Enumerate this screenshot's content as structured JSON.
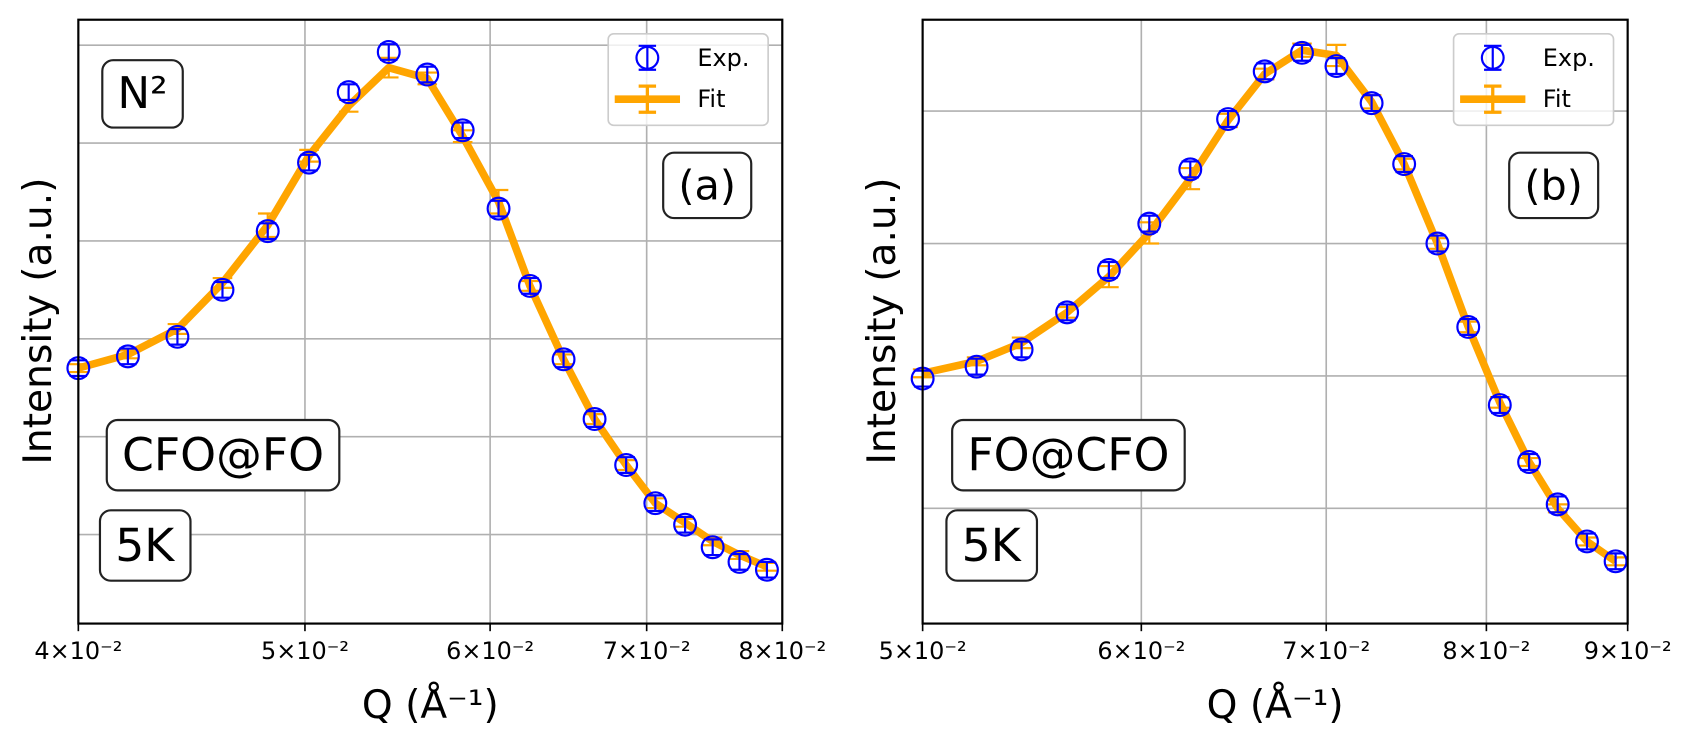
{
  "chart_data": [
    {
      "type": "errorbar",
      "xlabel": "Q (Å⁻¹)",
      "ylabel": "Intensity (a.u.)",
      "xscale": "log",
      "grid": true,
      "legend": "upper right",
      "xlim": [
        0.04,
        0.08
      ],
      "xticks": [
        {
          "value": 0.04,
          "label": "4×10⁻²"
        },
        {
          "value": 0.05,
          "label": "5×10⁻²"
        },
        {
          "value": 0.06,
          "label": "6×10⁻²"
        },
        {
          "value": 0.07,
          "label": "7×10⁻²"
        },
        {
          "value": 0.08,
          "label": "8×10⁻²"
        }
      ],
      "ylim": [
        0.09,
        6.26
      ],
      "yticks": [
        1,
        2,
        3,
        4,
        5,
        6
      ],
      "annotations": [
        "N²",
        "(a)",
        "CFO@FO",
        "5K"
      ],
      "x": [
        0.04,
        0.042,
        0.0441,
        0.0461,
        0.0482,
        0.0502,
        0.0522,
        0.0543,
        0.0564,
        0.0584,
        0.0605,
        0.0624,
        0.0645,
        0.0665,
        0.0686,
        0.0706,
        0.0727,
        0.0747,
        0.0767,
        0.0788
      ],
      "series": [
        {
          "name": "Exp.",
          "color": "#0000ff",
          "values": [
            2.7,
            2.82,
            3.02,
            3.5,
            4.1,
            4.8,
            5.52,
            5.93,
            5.7,
            5.13,
            4.33,
            3.54,
            2.79,
            2.18,
            1.71,
            1.32,
            1.1,
            0.87,
            0.72,
            0.64
          ],
          "errors": [
            0.08,
            0.08,
            0.08,
            0.08,
            0.08,
            0.08,
            0.08,
            0.08,
            0.08,
            0.08,
            0.08,
            0.08,
            0.08,
            0.08,
            0.08,
            0.08,
            0.08,
            0.08,
            0.08,
            0.08
          ]
        },
        {
          "name": "Fit",
          "color": "#ffa500",
          "values": [
            2.7,
            2.84,
            3.1,
            3.57,
            4.16,
            4.87,
            5.38,
            5.77,
            5.66,
            5.07,
            4.4,
            3.54,
            2.79,
            2.18,
            1.71,
            1.32,
            1.12,
            0.93,
            0.79,
            0.67
          ],
          "errors": [
            0.04,
            0.04,
            0.05,
            0.05,
            0.12,
            0.06,
            0.06,
            0.1,
            0.06,
            0.06,
            0.12,
            0.05,
            0.05,
            0.05,
            0.05,
            0.05,
            0.04,
            0.04,
            0.04,
            0.04
          ]
        }
      ]
    },
    {
      "type": "errorbar",
      "xlabel": "Q (Å⁻¹)",
      "ylabel": "Intensity (a.u.)",
      "xscale": "log",
      "grid": true,
      "legend": "upper right",
      "xlim": [
        0.05,
        0.09
      ],
      "xticks": [
        {
          "value": 0.05,
          "label": "5×10⁻²"
        },
        {
          "value": 0.06,
          "label": "6×10⁻²"
        },
        {
          "value": 0.07,
          "label": "7×10⁻²"
        },
        {
          "value": 0.08,
          "label": "8×10⁻²"
        },
        {
          "value": 0.09,
          "label": "9×10⁻²"
        }
      ],
      "ylim": [
        0.13,
        4.69
      ],
      "yticks": [
        1,
        2,
        3,
        4
      ],
      "annotations": [
        "(b)",
        "FO@CFO",
        "5K"
      ],
      "x": [
        0.05,
        0.0523,
        0.0543,
        0.0564,
        0.0584,
        0.0604,
        0.0625,
        0.0645,
        0.0665,
        0.0686,
        0.0706,
        0.0727,
        0.0747,
        0.0768,
        0.0788,
        0.0809,
        0.0829,
        0.0849,
        0.087,
        0.0891
      ],
      "series": [
        {
          "name": "Exp.",
          "color": "#0000ff",
          "values": [
            1.98,
            2.07,
            2.2,
            2.48,
            2.8,
            3.15,
            3.56,
            3.94,
            4.3,
            4.44,
            4.34,
            4.06,
            3.6,
            3.0,
            2.37,
            1.78,
            1.35,
            1.03,
            0.75,
            0.6
          ],
          "errors": [
            0.06,
            0.06,
            0.06,
            0.06,
            0.06,
            0.06,
            0.06,
            0.06,
            0.06,
            0.06,
            0.06,
            0.06,
            0.06,
            0.06,
            0.06,
            0.06,
            0.06,
            0.06,
            0.06,
            0.06
          ]
        },
        {
          "name": "Fit",
          "color": "#ffa500",
          "values": [
            2.02,
            2.11,
            2.25,
            2.48,
            2.75,
            3.08,
            3.49,
            3.93,
            4.28,
            4.46,
            4.42,
            4.07,
            3.6,
            3.0,
            2.37,
            1.8,
            1.35,
            1.0,
            0.75,
            0.6
          ],
          "errors": [
            0.03,
            0.03,
            0.04,
            0.04,
            0.08,
            0.08,
            0.08,
            0.05,
            0.04,
            0.05,
            0.08,
            0.05,
            0.04,
            0.04,
            0.04,
            0.04,
            0.03,
            0.03,
            0.03,
            0.03
          ]
        }
      ]
    }
  ]
}
